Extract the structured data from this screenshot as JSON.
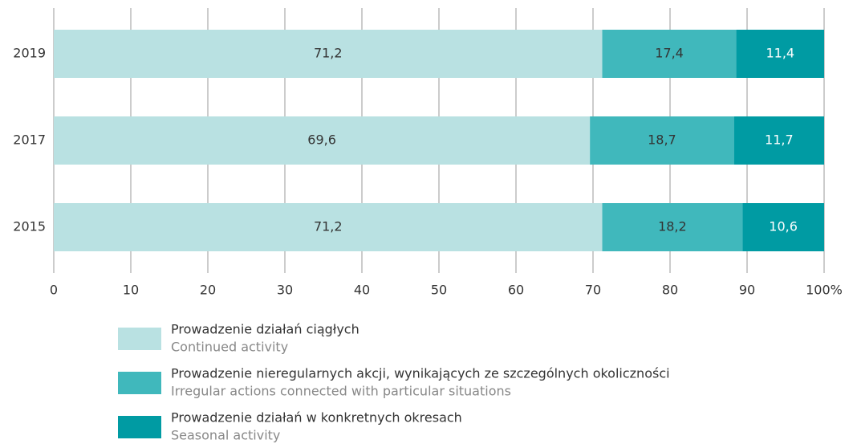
{
  "chart_data": {
    "type": "bar",
    "orientation": "horizontal",
    "stacked": true,
    "categories": [
      "2019",
      "2017",
      "2015"
    ],
    "series": [
      {
        "name": "Prowadzenie działań ciągłych",
        "name_en": "Continued activity",
        "color": "#b9e1e2",
        "label_color": "#333333",
        "values": [
          71.2,
          69.6,
          71.2
        ],
        "value_labels": [
          "71,2",
          "69,6",
          "71,2"
        ]
      },
      {
        "name": "Prowadzenie nieregularnych akcji, wynikających ze szczególnych okoliczności",
        "name_en": "Irregular actions connected with particular situations",
        "color": "#40b8bc",
        "label_color": "#333333",
        "values": [
          17.4,
          18.7,
          18.2
        ],
        "value_labels": [
          "17,4",
          "18,7",
          "18,2"
        ]
      },
      {
        "name": "Prowadzenie działań w konkretnych okresach",
        "name_en": "Seasonal activity",
        "color": "#009ba3",
        "label_color": "#ffffff",
        "values": [
          11.4,
          11.7,
          10.6
        ],
        "value_labels": [
          "11,4",
          "11,7",
          "10,6"
        ]
      }
    ],
    "xlim": [
      0,
      100
    ],
    "xticks": [
      0,
      10,
      20,
      30,
      40,
      50,
      60,
      70,
      80,
      90,
      {
        "value": 100,
        "label": "100%"
      }
    ],
    "grid": true
  }
}
